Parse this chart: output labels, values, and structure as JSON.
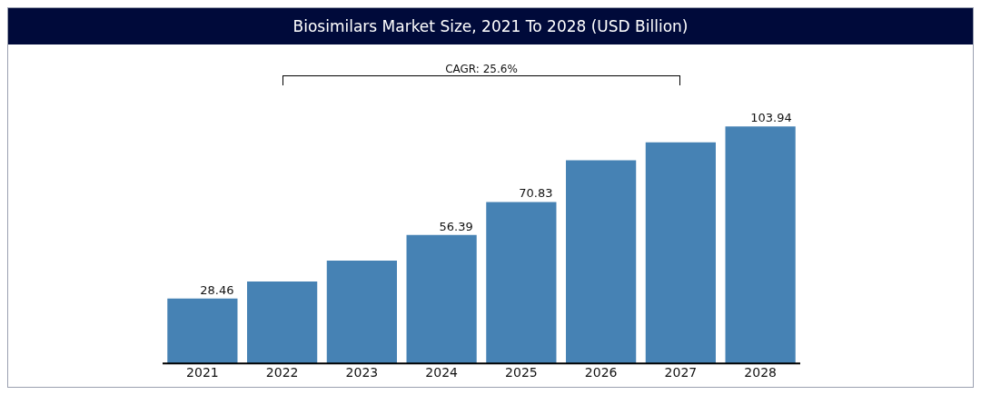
{
  "chart_data": {
    "type": "bar",
    "title": "Biosimilars Market Size, 2021 To 2028 (USD Billion)",
    "categories": [
      "2021",
      "2022",
      "2023",
      "2024",
      "2025",
      "2026",
      "2027",
      "2028"
    ],
    "values": [
      28.46,
      35.9,
      45.1,
      56.39,
      70.83,
      89.1,
      97,
      103.94
    ],
    "value_labels": [
      "28.46",
      null,
      null,
      "56.39",
      "70.83",
      null,
      null,
      "103.94"
    ],
    "color": "#4682b4",
    "annotations": [
      "CAGR: 25.6%"
    ],
    "grid": false,
    "legend": false
  }
}
